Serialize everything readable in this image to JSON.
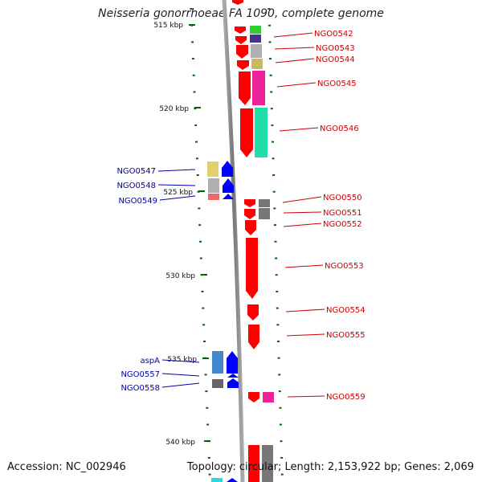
{
  "title": "Neisseria gonorrhoeae FA 1090, complete genome",
  "accession": "Accession: NC_002946",
  "genome_info": "Topology: circular; Length: 2,153,922 bp; Genes: 2,069",
  "ticks": [
    {
      "label": "515 kbp"
    },
    {
      "label": "520 kbp"
    },
    {
      "label": "525 kbp"
    },
    {
      "label": "530 kbp"
    },
    {
      "label": "535 kbp"
    },
    {
      "label": "540 kbp"
    }
  ],
  "right_genes": [
    {
      "label": "NGO0542",
      "color": "#33cc33"
    },
    {
      "label": "NGO0543",
      "color": "#b0b0b0"
    },
    {
      "label": "NGO0544",
      "color": "#c8b860"
    },
    {
      "label": "NGO0545",
      "color": "#ee2299"
    },
    {
      "label": "NGO0546",
      "color": "#22ddaa"
    },
    {
      "label": "NGO0550",
      "color": "#777777"
    },
    {
      "label": "NGO0551",
      "color": "#777777"
    },
    {
      "label": "NGO0552",
      "color": "#777777"
    },
    {
      "label": "NGO0553",
      "color": "#777777"
    },
    {
      "label": "NGO0554",
      "color": "#777777"
    },
    {
      "label": "NGO0555",
      "color": "#777777"
    },
    {
      "label": "NGO0559",
      "color": "#ee2299"
    }
  ],
  "left_genes": [
    {
      "label": "NGO0547",
      "color": "#e0d070"
    },
    {
      "label": "NGO0548",
      "color": "#b0b0b0"
    },
    {
      "label": "NGO0549",
      "color": "#ee6666"
    },
    {
      "label": "aspA",
      "color": "#4488cc"
    },
    {
      "label": "NGO0557",
      "color": "#777777"
    },
    {
      "label": "NGO0558",
      "color": "#666666"
    }
  ],
  "colors": {
    "forward_strand": "#ff0000",
    "reverse_strand": "#0000ff",
    "backbone": "#888888",
    "tick": "#006600"
  }
}
